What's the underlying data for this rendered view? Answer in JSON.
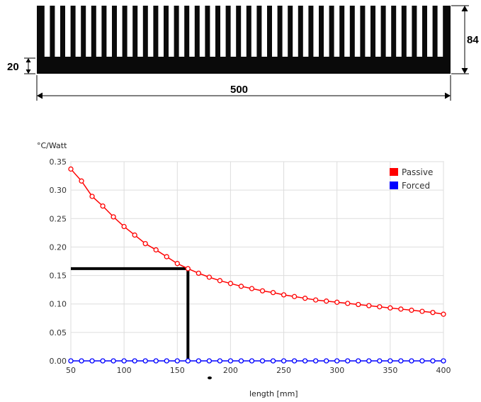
{
  "drawing": {
    "height_label": "84",
    "base_label": "20",
    "width_label": "500",
    "fin_count": 40
  },
  "chart_data": {
    "type": "line",
    "title": "",
    "xlabel": "length [mm]",
    "ylabel": "°C/Watt",
    "xlim": [
      50,
      400
    ],
    "ylim": [
      0,
      0.35
    ],
    "x_ticks": [
      50,
      100,
      150,
      200,
      250,
      300,
      350,
      400
    ],
    "y_ticks": [
      "0.00",
      "0.05",
      "0.10",
      "0.15",
      "0.20",
      "0.25",
      "0.30",
      "0.35"
    ],
    "grid": true,
    "legend_position": "top-right",
    "x": [
      50,
      60,
      70,
      80,
      90,
      100,
      110,
      120,
      130,
      140,
      150,
      160,
      170,
      180,
      190,
      200,
      210,
      220,
      230,
      240,
      250,
      260,
      270,
      280,
      290,
      300,
      310,
      320,
      330,
      340,
      350,
      360,
      370,
      380,
      390,
      400
    ],
    "series": [
      {
        "name": "Passive",
        "color": "#ff0000",
        "values": [
          0.337,
          0.316,
          0.289,
          0.272,
          0.253,
          0.236,
          0.221,
          0.206,
          0.195,
          0.183,
          0.171,
          0.162,
          0.154,
          0.147,
          0.141,
          0.136,
          0.131,
          0.127,
          0.123,
          0.12,
          0.116,
          0.113,
          0.11,
          0.107,
          0.105,
          0.103,
          0.101,
          0.099,
          0.097,
          0.095,
          0.093,
          0.091,
          0.089,
          0.087,
          0.085,
          0.082
        ]
      },
      {
        "name": "Forced",
        "color": "#0000ff",
        "values": [
          0,
          0,
          0,
          0,
          0,
          0,
          0,
          0,
          0,
          0,
          0,
          0,
          0,
          0,
          0,
          0,
          0,
          0,
          0,
          0,
          0,
          0,
          0,
          0,
          0,
          0,
          0,
          0,
          0,
          0,
          0,
          0,
          0,
          0,
          0,
          0
        ]
      }
    ],
    "annotation": {
      "x": 160,
      "y": 0.162,
      "color": "#000000"
    }
  }
}
